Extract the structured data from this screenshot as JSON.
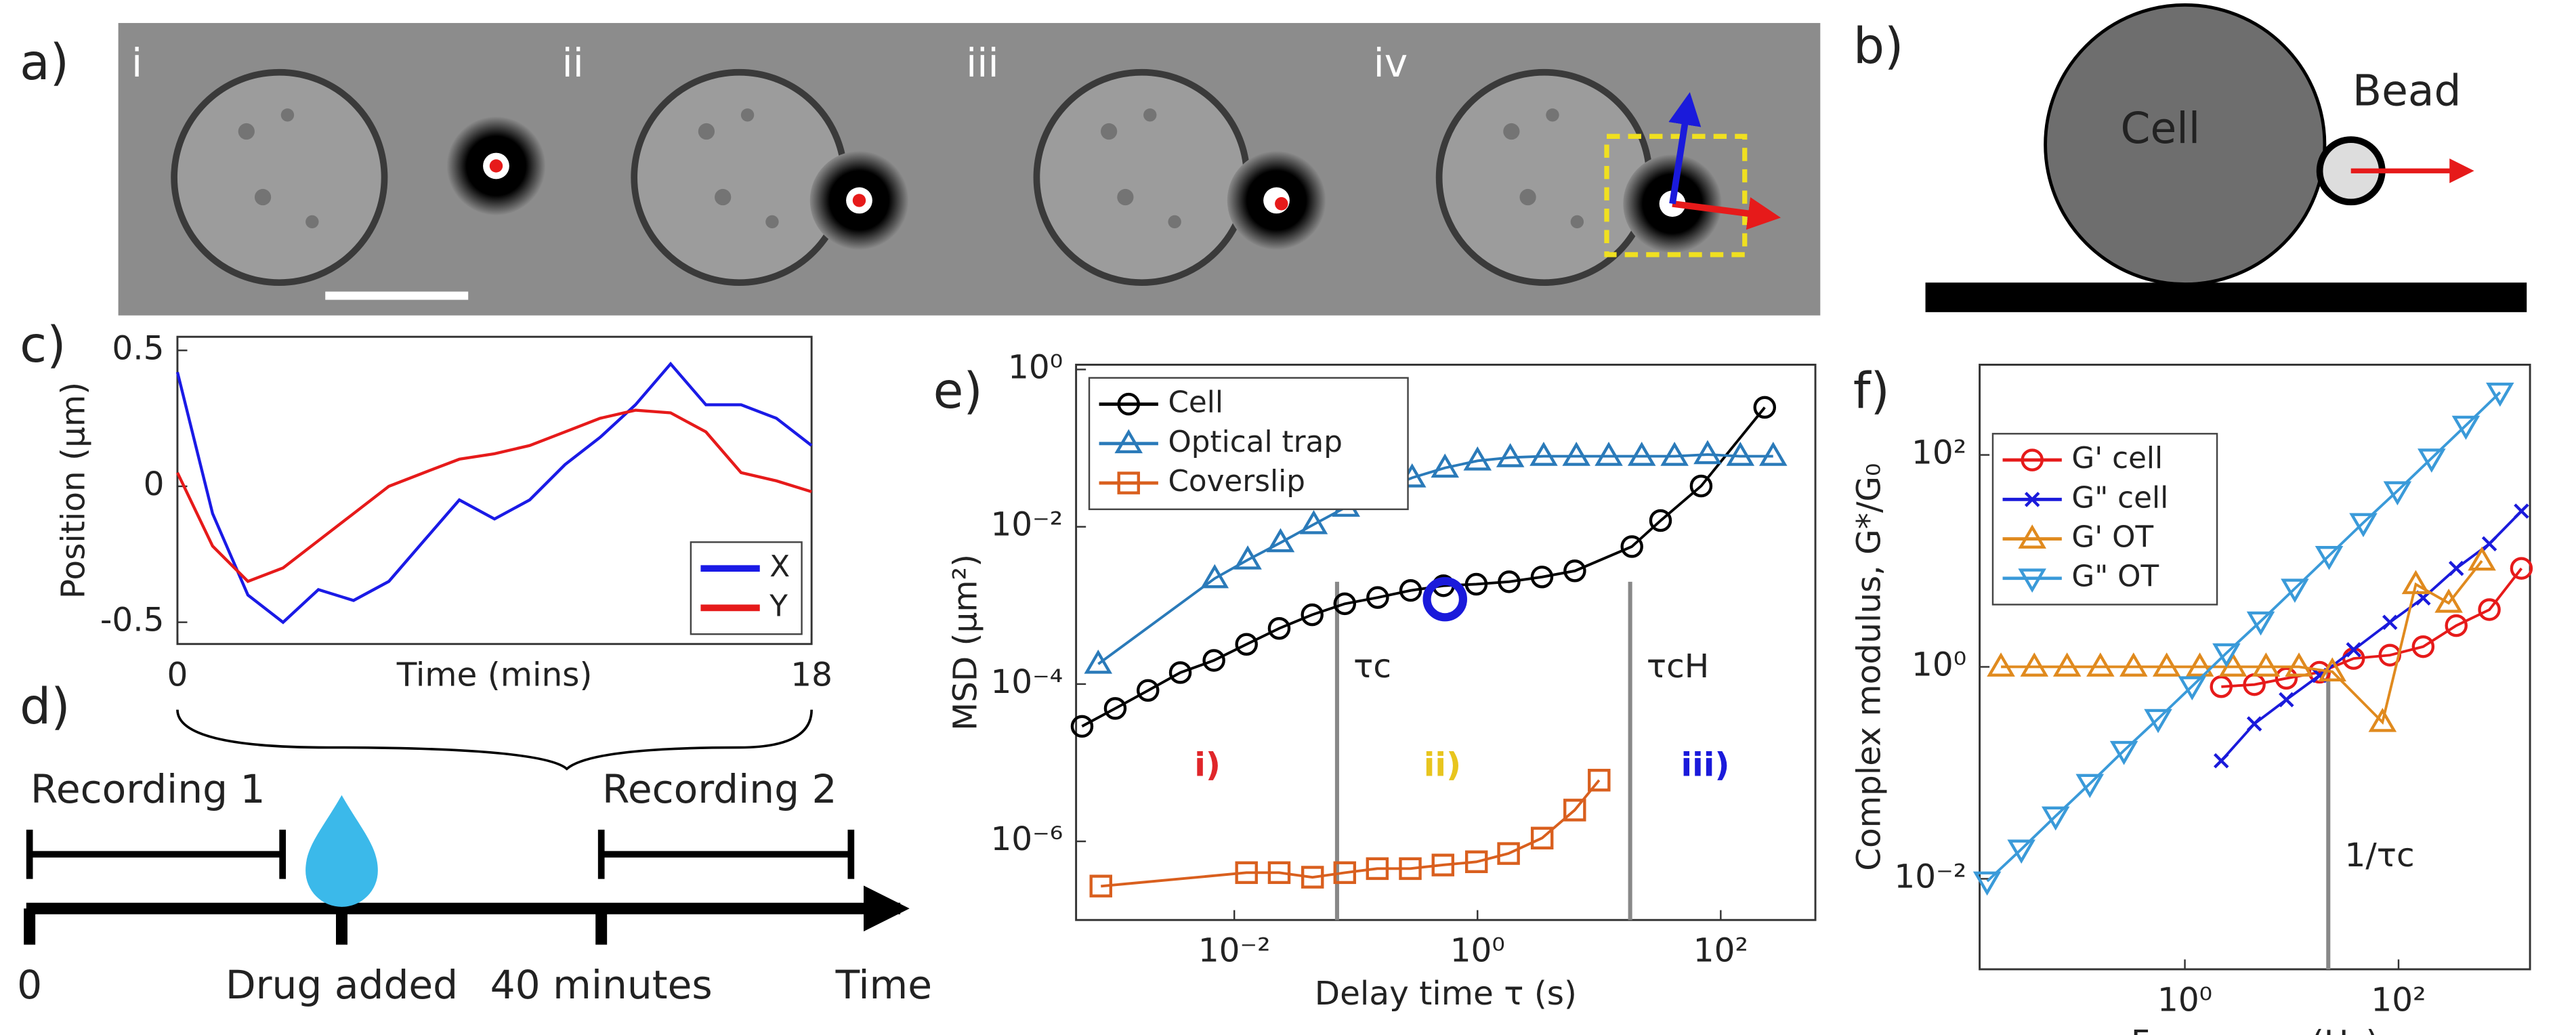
{
  "panel_labels": [
    "a)",
    "b)",
    "c)",
    "d)",
    "e)",
    "f)"
  ],
  "micrographs": {
    "labels": [
      "i",
      "ii",
      "iii",
      "iv"
    ]
  },
  "diagram": {
    "cell": "Cell",
    "bead": "Bead"
  },
  "timeline": {
    "recordings": [
      "Recording 1",
      "Recording 2"
    ],
    "marks": [
      "0",
      "Drug added",
      "40 minutes",
      "Time"
    ]
  },
  "chart_data": [
    {
      "type": "line",
      "x_label": "Time (mins)",
      "y_label": "Position (μm)",
      "x": [
        0,
        1,
        2,
        3,
        4,
        5,
        6,
        7,
        8,
        9,
        10,
        11,
        12,
        13,
        14,
        15,
        16,
        17,
        18
      ],
      "series": [
        {
          "name": "X",
          "color": "#1a1ae6",
          "marker": "none",
          "values": [
            0.42,
            -0.1,
            -0.4,
            -0.5,
            -0.38,
            -0.42,
            -0.35,
            -0.2,
            -0.05,
            -0.12,
            -0.05,
            0.08,
            0.18,
            0.3,
            0.45,
            0.3,
            0.3,
            0.25,
            0.15
          ]
        },
        {
          "name": "Y",
          "color": "#e61a1a",
          "marker": "none",
          "values": [
            0.05,
            -0.22,
            -0.35,
            -0.3,
            -0.2,
            -0.1,
            0,
            0.05,
            0.1,
            0.12,
            0.15,
            0.2,
            0.25,
            0.28,
            0.27,
            0.2,
            0.05,
            0.02,
            -0.02
          ]
        }
      ],
      "xlim": [
        0,
        18
      ],
      "xticks": [
        0,
        18
      ],
      "ylim": [
        -0.58,
        0.55
      ],
      "yticks": [
        -0.5,
        0,
        0.5
      ],
      "legend": "lower right"
    },
    {
      "type": "line",
      "x_label": "Delay time τ (s)",
      "y_label": "MSD (μm²)",
      "xlog": true,
      "ylog": true,
      "series": [
        {
          "name": "Cell",
          "color": "#000000",
          "marker": "circle",
          "x": [
            0.00056,
            0.00105,
            0.00195,
            0.0036,
            0.0068,
            0.0126,
            0.0234,
            0.0437,
            0.081,
            0.151,
            0.282,
            0.525,
            0.977,
            1.82,
            3.39,
            6.31,
            18.6,
            32,
            69,
            230
          ],
          "values": [
            2.9e-05,
            4.9e-05,
            8.3e-05,
            0.00014,
            0.0002,
            0.00032,
            0.00051,
            0.00076,
            0.00105,
            0.00126,
            0.00155,
            0.00178,
            0.00186,
            0.002,
            0.0023,
            0.00275,
            0.0056,
            0.012,
            0.033,
            0.33
          ]
        },
        {
          "name": "Optical trap",
          "color": "#2a7ab9",
          "marker": "triangle",
          "x": [
            0.00076,
            0.0069,
            0.0129,
            0.024,
            0.045,
            0.083,
            0.155,
            0.29,
            0.54,
            1,
            1.86,
            3.5,
            6.5,
            12,
            22.4,
            41.7,
            78,
            145,
            270
          ],
          "values": [
            0.00018,
            0.0022,
            0.0038,
            0.0063,
            0.0107,
            0.0178,
            0.028,
            0.042,
            0.056,
            0.069,
            0.076,
            0.079,
            0.079,
            0.079,
            0.079,
            0.079,
            0.083,
            0.079,
            0.079
          ]
        },
        {
          "name": "Coverslip",
          "color": "#d95f1e",
          "marker": "square",
          "x": [
            0.0008,
            0.0126,
            0.0234,
            0.044,
            0.081,
            0.15,
            0.28,
            0.52,
            0.98,
            1.8,
            3.4,
            6.3,
            10
          ],
          "values": [
            2.7e-07,
            4e-07,
            4e-07,
            3.5e-07,
            4e-07,
            4.5e-07,
            4.5e-07,
            5e-07,
            5.5e-07,
            7e-07,
            1.1e-06,
            2.5e-06,
            6e-06
          ]
        }
      ],
      "xlim": [
        0.0005,
        600
      ],
      "ylim": [
        1e-07,
        1.15
      ],
      "xticks": [
        {
          "value": 0.01,
          "label": "10⁻²"
        },
        {
          "value": 1,
          "label": "10⁰"
        },
        {
          "value": 100,
          "label": "10²"
        }
      ],
      "yticks": [
        {
          "value": 1e-06,
          "label": "10⁻⁶"
        },
        {
          "value": 0.0001,
          "label": "10⁻⁴"
        },
        {
          "value": 0.01,
          "label": "10⁻²"
        },
        {
          "value": 1,
          "label": "10⁰"
        }
      ],
      "vlines": [
        {
          "x": 0.07,
          "label": "τc"
        },
        {
          "x": 18,
          "label": "τcH"
        }
      ],
      "regions": [
        {
          "text": "i)",
          "color": "#e0262a"
        },
        {
          "text": "ii)",
          "color": "#e8c51e"
        },
        {
          "text": "iii)",
          "color": "#1a1adb"
        }
      ],
      "highlight": {
        "x": 0.54,
        "y": 0.0012,
        "color": "#1a1adb"
      },
      "legend": "upper left"
    },
    {
      "type": "line",
      "x_label": "Frequency (Hz)",
      "y_label": "Complex modulus, G*/G₀",
      "xlog": true,
      "ylog": true,
      "series": [
        {
          "name": "G' cell",
          "color": "#e61a1a",
          "marker": "circle",
          "x": [
            2.19,
            4.47,
            8.91,
            18.2,
            38,
            83,
            170,
            347,
            708,
            1413
          ],
          "values": [
            0.65,
            0.68,
            0.78,
            0.89,
            1.2,
            1.29,
            1.55,
            2.45,
            3.47,
            8.5
          ]
        },
        {
          "name": "G\" cell",
          "color": "#1a1adb",
          "marker": "x",
          "x": [
            2.19,
            4.47,
            8.91,
            18.2,
            38,
            83,
            170,
            347,
            708,
            1413
          ],
          "values": [
            0.13,
            0.29,
            0.49,
            0.83,
            1.45,
            2.63,
            4.47,
            8.5,
            14.5,
            29.5
          ]
        },
        {
          "name": "G' OT",
          "color": "#e08a1e",
          "marker": "triangle",
          "x": [
            0.019,
            0.039,
            0.079,
            0.162,
            0.331,
            0.676,
            1.38,
            2.82,
            5.75,
            11.7,
            24,
            70.8,
            145,
            295,
            603
          ],
          "values": [
            1,
            1,
            1,
            1,
            1,
            1,
            1,
            1,
            1,
            1,
            0.9,
            0.3,
            6,
            4,
            10
          ]
        },
        {
          "name": "G\" OT",
          "color": "#3a9ad9",
          "marker": "triangle-down",
          "x": [
            0.0141,
            0.0295,
            0.0617,
            0.129,
            0.269,
            0.562,
            1.17,
            2.45,
            5.13,
            10.7,
            22.4,
            46.8,
            97.7,
            204,
            427,
            891
          ],
          "values": [
            0.0095,
            0.019,
            0.039,
            0.079,
            0.162,
            0.324,
            0.66,
            1.35,
            2.7,
            5.5,
            11.2,
            22.9,
            45.7,
            93,
            190,
            390
          ]
        }
      ],
      "xlim": [
        0.012,
        1700
      ],
      "ylim": [
        0.0014,
        710
      ],
      "xticks": [
        {
          "value": 1,
          "label": "10⁰"
        },
        {
          "value": 100,
          "label": "10²"
        }
      ],
      "yticks": [
        {
          "value": 0.01,
          "label": "10⁻²"
        },
        {
          "value": 1,
          "label": "10⁰"
        },
        {
          "value": 100,
          "label": "10²"
        }
      ],
      "vlines": [
        {
          "x": 22,
          "label": "1/τc"
        }
      ],
      "legend": "upper left"
    }
  ]
}
